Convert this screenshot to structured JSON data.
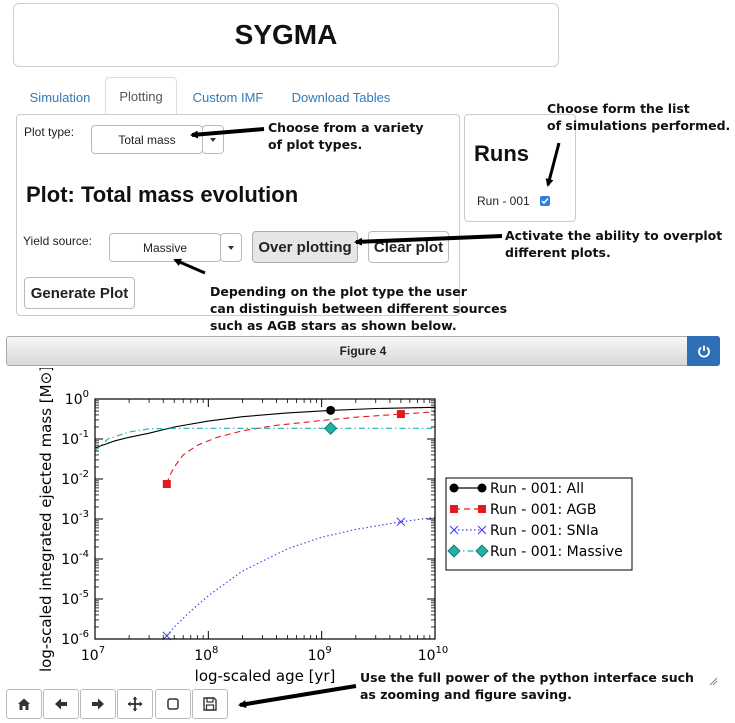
{
  "app": {
    "title": "SYGMA"
  },
  "tabs": [
    {
      "label": "Simulation",
      "active": false
    },
    {
      "label": "Plotting",
      "active": true
    },
    {
      "label": "Custom IMF",
      "active": false
    },
    {
      "label": "Download Tables",
      "active": false
    }
  ],
  "plot_controls": {
    "plot_type_label": "Plot type:",
    "plot_type_value": "Total mass",
    "heading": "Plot: Total mass evolution",
    "yield_source_label": "Yield source:",
    "yield_source_value": "Massive",
    "over_plotting_label": "Over plotting",
    "clear_plot_label": "Clear plot",
    "generate_plot_label": "Generate Plot"
  },
  "runs": {
    "heading": "Runs",
    "items": [
      {
        "label": "Run - 001",
        "checked": true
      }
    ]
  },
  "annotations": {
    "list_note": "Choose form the list\nof simulations performed.",
    "plot_types_note": "Choose from a variety\nof plot types.",
    "overplot_note": "Activate the ability to overplot\ndifferent plots.",
    "source_note": "Depending on the plot type the user\ncan distinguish between different sources\nsuch as AGB stars as shown below.",
    "python_note": "Use the full power of the python interface such\nas zooming and figure saving."
  },
  "figure": {
    "title": "Figure 4",
    "power_icon": "power-icon"
  },
  "toolbar": {
    "icons": [
      "home-icon",
      "back-arrow-icon",
      "forward-arrow-icon",
      "pan-icon",
      "zoom-rect-icon",
      "save-icon"
    ]
  },
  "chart_data": {
    "type": "line",
    "xlabel": "log-scaled age [yr]",
    "ylabel": "log-scaled integrated ejected mass [M⊙]",
    "xscale": "log",
    "yscale": "log",
    "xlim": [
      10000000.0,
      10000000000.0
    ],
    "ylim": [
      1e-06,
      1
    ],
    "x_ticks": [
      {
        "value": 10000000.0,
        "base": "10",
        "exp": "7"
      },
      {
        "value": 100000000.0,
        "base": "10",
        "exp": "8"
      },
      {
        "value": 1000000000.0,
        "base": "10",
        "exp": "9"
      },
      {
        "value": 10000000000.0,
        "base": "10",
        "exp": "10"
      }
    ],
    "y_ticks": [
      {
        "value": 1e-06,
        "base": "10",
        "exp": "-6"
      },
      {
        "value": 1e-05,
        "base": "10",
        "exp": "-5"
      },
      {
        "value": 0.0001,
        "base": "10",
        "exp": "-4"
      },
      {
        "value": 0.001,
        "base": "10",
        "exp": "-3"
      },
      {
        "value": 0.01,
        "base": "10",
        "exp": "-2"
      },
      {
        "value": 0.1,
        "base": "10",
        "exp": "-1"
      },
      {
        "value": 1,
        "base": "10",
        "exp": "0"
      }
    ],
    "legend_position": "right",
    "series": [
      {
        "name": "Run - 001: All",
        "color": "#000000",
        "dash": "solid",
        "marker": "circle",
        "x": [
          10000000.0,
          15000000.0,
          20000000.0,
          30000000.0,
          50000000.0,
          100000000.0,
          200000000.0,
          500000000.0,
          1200000000.0,
          3000000000.0,
          10000000000.0
        ],
        "y": [
          0.06,
          0.09,
          0.11,
          0.14,
          0.2,
          0.28,
          0.36,
          0.45,
          0.52,
          0.58,
          0.62
        ],
        "markers_x": [
          1200000000.0
        ],
        "markers_y": [
          0.52
        ]
      },
      {
        "name": "Run - 001: AGB",
        "color": "#e31a1c",
        "dash": "dashed",
        "marker": "square",
        "x": [
          43000000.0,
          45000000.0,
          50000000.0,
          60000000.0,
          80000000.0,
          120000000.0,
          200000000.0,
          400000000.0,
          1000000000.0,
          2000000000.0,
          5000000000.0,
          10000000000.0
        ],
        "y": [
          0.0075,
          0.011,
          0.02,
          0.04,
          0.07,
          0.11,
          0.16,
          0.22,
          0.29,
          0.35,
          0.42,
          0.48
        ],
        "markers_x": [
          43000000.0,
          5000000000.0
        ],
        "markers_y": [
          0.0075,
          0.42
        ]
      },
      {
        "name": "Run - 001: SNIa",
        "color": "#3a3af0",
        "dash": "dotted",
        "marker": "x",
        "x": [
          43000000.0,
          50000000.0,
          70000000.0,
          100000000.0,
          200000000.0,
          500000000.0,
          1000000000.0,
          2000000000.0,
          5000000000.0,
          10000000000.0
        ],
        "y": [
          1.2e-06,
          2e-06,
          5e-06,
          1.2e-05,
          5e-05,
          0.00018,
          0.00035,
          0.00055,
          0.00085,
          0.0011
        ],
        "markers_x": [
          43000000.0,
          5000000000.0
        ],
        "markers_y": [
          1.2e-06,
          0.00085
        ]
      },
      {
        "name": "Run - 001: Massive",
        "color": "#20b2aa",
        "dash": "dashdot",
        "marker": "diamond",
        "x": [
          10000000.0,
          13000000.0,
          20000000.0,
          30000000.0,
          50000000.0,
          100000000.0,
          1000000000.0,
          10000000000.0
        ],
        "y": [
          0.05,
          0.1,
          0.15,
          0.18,
          0.185,
          0.185,
          0.185,
          0.185
        ],
        "markers_x": [
          1200000000.0
        ],
        "markers_y": [
          0.185
        ]
      }
    ]
  }
}
